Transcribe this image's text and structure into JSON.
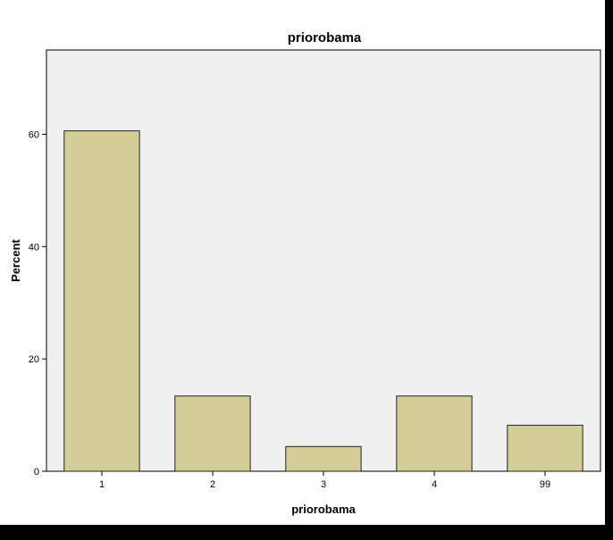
{
  "chart_data": {
    "type": "bar",
    "title": "priorobama",
    "xlabel": "priorobama",
    "ylabel": "Percent",
    "categories": [
      "1",
      "2",
      "3",
      "4",
      "99"
    ],
    "values": [
      60.6,
      13.4,
      4.4,
      13.4,
      8.2
    ],
    "yticks": [
      "0",
      "20",
      "40",
      "60"
    ],
    "ylim": [
      0,
      75
    ],
    "grid": false,
    "colors": {
      "bar_fill": "#d3ce97",
      "bar_stroke": "#222222",
      "plot_background": "#f0f0f0",
      "axis": "#000000"
    }
  }
}
